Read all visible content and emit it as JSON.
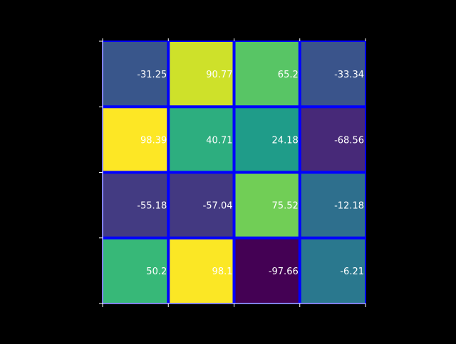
{
  "chart_data": {
    "type": "heatmap",
    "title": "",
    "xlabel": "",
    "ylabel": "",
    "rows": 4,
    "cols": 4,
    "values": [
      [
        -31.25,
        90.77,
        65.2,
        -33.34
      ],
      [
        98.39,
        40.71,
        24.18,
        -68.56
      ],
      [
        -55.18,
        -57.04,
        75.52,
        -12.18
      ],
      [
        50.2,
        98.1,
        -97.66,
        -6.21
      ]
    ],
    "value_labels": [
      [
        "-31.25",
        "90.77",
        "65.2",
        "-33.34"
      ],
      [
        "98.39",
        "40.71",
        "24.18",
        "-68.56"
      ],
      [
        "-55.18",
        "-57.04",
        "75.52",
        "-12.18"
      ],
      [
        "50.2",
        "98.1",
        "-97.66",
        "-6.21"
      ]
    ],
    "vmin": -97.66,
    "vmax": 98.39,
    "colormap": "viridis",
    "colorbar": false,
    "x_tick_labels": [],
    "y_tick_labels": [],
    "grid": true,
    "colors": {
      "background": "#000000",
      "cell_border": "#0000ff",
      "axis": "#ffffff",
      "label_text": "#ffffff"
    }
  }
}
